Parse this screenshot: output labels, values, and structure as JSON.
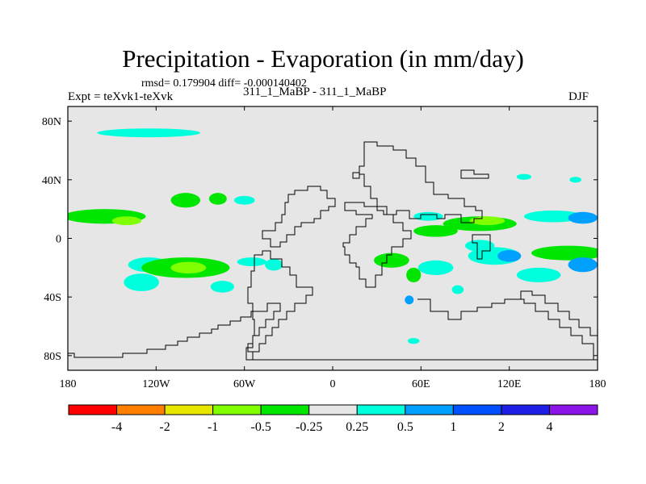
{
  "title": "Precipitation - Evaporation (in mm/day)",
  "stats": "rmsd= 0.179904 diff= -0.000140402",
  "experiment": "Expt = teXvk1-teXvk",
  "subtitle": "311_1_MaBP - 311_1_MaBP",
  "season": "DJF",
  "chart_data": {
    "type": "heatmap",
    "projection": "cylindrical equidistant",
    "xlim": [
      -180,
      180
    ],
    "ylim": [
      -90,
      90
    ],
    "x_ticks": [
      {
        "value": -180,
        "label": "180"
      },
      {
        "value": -120,
        "label": "120W"
      },
      {
        "value": -60,
        "label": "60W"
      },
      {
        "value": 0,
        "label": "0"
      },
      {
        "value": 60,
        "label": "60E"
      },
      {
        "value": 120,
        "label": "120E"
      },
      {
        "value": 180,
        "label": "180"
      }
    ],
    "y_ticks": [
      {
        "value": 80,
        "label": "80N"
      },
      {
        "value": 40,
        "label": "40N"
      },
      {
        "value": 0,
        "label": "0"
      },
      {
        "value": -40,
        "label": "40S"
      },
      {
        "value": -80,
        "label": "80S"
      }
    ],
    "colorbar": {
      "levels": [
        "-4",
        "-2",
        "-1",
        "-0.5",
        "-0.25",
        "0.25",
        "0.5",
        "1",
        "2",
        "4"
      ],
      "colors": [
        "#ff0000",
        "#ff8000",
        "#e6e600",
        "#80ff00",
        "#00e600",
        "#e6e6e6",
        "#00ffdc",
        "#00a0ff",
        "#0050ff",
        "#1e1ee6",
        "#8c14e6"
      ]
    },
    "background_color": "#e6e6e6",
    "anomalies": [
      {
        "lon": -125,
        "lat": 72,
        "rx": 35,
        "ry": 3,
        "cls": 6
      },
      {
        "lon": -155,
        "lat": 15,
        "rx": 28,
        "ry": 5,
        "cls": 4
      },
      {
        "lon": -140,
        "lat": 12,
        "rx": 10,
        "ry": 3,
        "cls": 3
      },
      {
        "lon": -100,
        "lat": 26,
        "rx": 10,
        "ry": 5,
        "cls": 4
      },
      {
        "lon": -78,
        "lat": 27,
        "rx": 6,
        "ry": 4,
        "cls": 4
      },
      {
        "lon": -60,
        "lat": 26,
        "rx": 7,
        "ry": 3,
        "cls": 6
      },
      {
        "lon": -125,
        "lat": -18,
        "rx": 14,
        "ry": 5,
        "cls": 6
      },
      {
        "lon": -100,
        "lat": -20,
        "rx": 30,
        "ry": 7,
        "cls": 4
      },
      {
        "lon": -98,
        "lat": -20,
        "rx": 12,
        "ry": 4,
        "cls": 3
      },
      {
        "lon": -130,
        "lat": -30,
        "rx": 12,
        "ry": 6,
        "cls": 6
      },
      {
        "lon": -75,
        "lat": -33,
        "rx": 8,
        "ry": 4,
        "cls": 6
      },
      {
        "lon": -55,
        "lat": -16,
        "rx": 10,
        "ry": 3,
        "cls": 6
      },
      {
        "lon": -40,
        "lat": -18,
        "rx": 6,
        "ry": 4,
        "cls": 6
      },
      {
        "lon": 40,
        "lat": -15,
        "rx": 12,
        "ry": 5,
        "cls": 4
      },
      {
        "lon": 55,
        "lat": -25,
        "rx": 5,
        "ry": 5,
        "cls": 4
      },
      {
        "lon": 70,
        "lat": -20,
        "rx": 12,
        "ry": 5,
        "cls": 6
      },
      {
        "lon": 70,
        "lat": 5,
        "rx": 15,
        "ry": 4,
        "cls": 4
      },
      {
        "lon": 65,
        "lat": 15,
        "rx": 10,
        "ry": 3,
        "cls": 6
      },
      {
        "lon": 100,
        "lat": 10,
        "rx": 25,
        "ry": 5,
        "cls": 4
      },
      {
        "lon": 105,
        "lat": 12,
        "rx": 12,
        "ry": 3,
        "cls": 3
      },
      {
        "lon": 100,
        "lat": -5,
        "rx": 10,
        "ry": 4,
        "cls": 6
      },
      {
        "lon": 110,
        "lat": -12,
        "rx": 18,
        "ry": 6,
        "cls": 6
      },
      {
        "lon": 120,
        "lat": -12,
        "rx": 8,
        "ry": 4,
        "cls": 7
      },
      {
        "lon": 150,
        "lat": 15,
        "rx": 20,
        "ry": 4,
        "cls": 6
      },
      {
        "lon": 170,
        "lat": 14,
        "rx": 10,
        "ry": 4,
        "cls": 7
      },
      {
        "lon": 160,
        "lat": -10,
        "rx": 25,
        "ry": 5,
        "cls": 4
      },
      {
        "lon": 170,
        "lat": -18,
        "rx": 10,
        "ry": 5,
        "cls": 7
      },
      {
        "lon": 140,
        "lat": -25,
        "rx": 15,
        "ry": 5,
        "cls": 6
      },
      {
        "lon": 165,
        "lat": 40,
        "rx": 4,
        "ry": 2,
        "cls": 6
      },
      {
        "lon": 130,
        "lat": 42,
        "rx": 5,
        "ry": 2,
        "cls": 6
      },
      {
        "lon": 85,
        "lat": -35,
        "rx": 4,
        "ry": 3,
        "cls": 6
      },
      {
        "lon": 55,
        "lat": -70,
        "rx": 4,
        "ry": 2,
        "cls": 6
      },
      {
        "lon": 52,
        "lat": -42,
        "rx": 3,
        "ry": 3,
        "cls": 7
      }
    ]
  }
}
